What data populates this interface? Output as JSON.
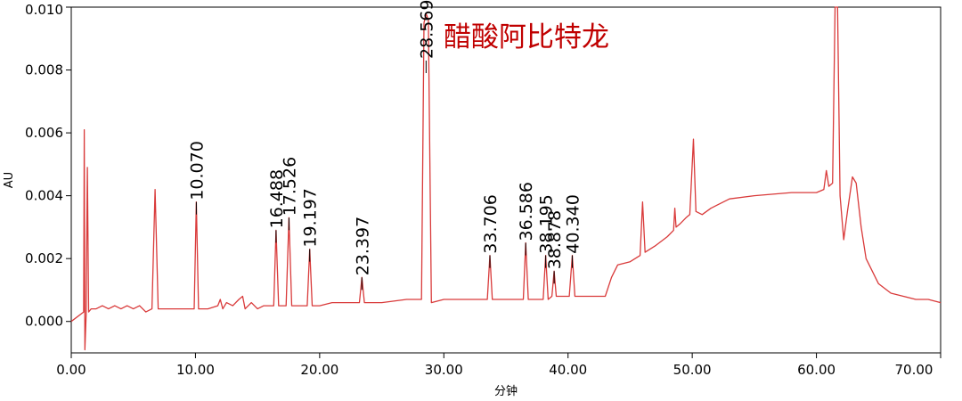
{
  "chart_data": {
    "type": "line",
    "title": "醋酸阿比特龙",
    "xlabel": "分钟",
    "ylabel": "AU",
    "xlim": [
      0,
      70
    ],
    "ylim": [
      -0.001,
      0.01
    ],
    "x_ticks": [
      "0.00",
      "10.00",
      "20.00",
      "30.00",
      "40.00",
      "50.00",
      "60.00",
      "70.00"
    ],
    "y_ticks": [
      "0.000",
      "0.002",
      "0.004",
      "0.006",
      "0.008",
      "0.010"
    ],
    "grid": false,
    "legend": "none",
    "colors": {
      "trace": "#d93a3a",
      "title": "#c00000",
      "axis": "#000000"
    },
    "labeled_peaks": [
      {
        "label": "10.070",
        "x": 10.07,
        "y": 0.0038
      },
      {
        "label": "16.488",
        "x": 16.49,
        "y": 0.0029
      },
      {
        "label": "17.526",
        "x": 17.53,
        "y": 0.0033
      },
      {
        "label": "19.197",
        "x": 19.2,
        "y": 0.0023
      },
      {
        "label": "23.397",
        "x": 23.4,
        "y": 0.0014
      },
      {
        "label": "28.569",
        "x": 28.57,
        "y": 0.0098
      },
      {
        "label": "33.706",
        "x": 33.71,
        "y": 0.0021
      },
      {
        "label": "36.586",
        "x": 36.59,
        "y": 0.0025
      },
      {
        "label": "38.195",
        "x": 38.2,
        "y": 0.0021
      },
      {
        "label": "38.878",
        "x": 38.88,
        "y": 0.0016
      },
      {
        "label": "40.340",
        "x": 40.34,
        "y": 0.0021
      }
    ],
    "trace": [
      [
        0,
        0.0
      ],
      [
        1.0,
        0.0003
      ],
      [
        1.05,
        0.0061
      ],
      [
        1.1,
        -0.0009
      ],
      [
        1.2,
        0.0002
      ],
      [
        1.3,
        0.0049
      ],
      [
        1.4,
        0.0003
      ],
      [
        1.6,
        0.0004
      ],
      [
        2.0,
        0.0004
      ],
      [
        2.5,
        0.0005
      ],
      [
        3.0,
        0.0004
      ],
      [
        3.5,
        0.0005
      ],
      [
        4.0,
        0.0004
      ],
      [
        4.5,
        0.0005
      ],
      [
        5.0,
        0.0004
      ],
      [
        5.5,
        0.0005
      ],
      [
        6.0,
        0.0003
      ],
      [
        6.5,
        0.0004
      ],
      [
        6.75,
        0.0042
      ],
      [
        7.0,
        0.0004
      ],
      [
        8.0,
        0.0004
      ],
      [
        9.0,
        0.0004
      ],
      [
        9.9,
        0.0004
      ],
      [
        10.07,
        0.0038
      ],
      [
        10.25,
        0.0004
      ],
      [
        11.0,
        0.0004
      ],
      [
        11.8,
        0.0005
      ],
      [
        12.0,
        0.0007
      ],
      [
        12.2,
        0.0004
      ],
      [
        12.5,
        0.0006
      ],
      [
        13.0,
        0.0005
      ],
      [
        13.5,
        0.0007
      ],
      [
        13.8,
        0.0008
      ],
      [
        14.0,
        0.0004
      ],
      [
        14.5,
        0.0006
      ],
      [
        15.0,
        0.0004
      ],
      [
        15.5,
        0.0005
      ],
      [
        16.3,
        0.0005
      ],
      [
        16.49,
        0.0029
      ],
      [
        16.7,
        0.0005
      ],
      [
        17.3,
        0.0005
      ],
      [
        17.53,
        0.0033
      ],
      [
        17.75,
        0.0005
      ],
      [
        18.5,
        0.0005
      ],
      [
        19.0,
        0.0005
      ],
      [
        19.2,
        0.0023
      ],
      [
        19.4,
        0.0005
      ],
      [
        20.0,
        0.0005
      ],
      [
        21.0,
        0.0006
      ],
      [
        22.0,
        0.0006
      ],
      [
        23.0,
        0.0006
      ],
      [
        23.2,
        0.0006
      ],
      [
        23.4,
        0.0014
      ],
      [
        23.6,
        0.0006
      ],
      [
        25.0,
        0.0006
      ],
      [
        27.0,
        0.0007
      ],
      [
        28.2,
        0.0007
      ],
      [
        28.4,
        0.0095
      ],
      [
        28.57,
        0.0098
      ],
      [
        28.75,
        0.0096
      ],
      [
        29.0,
        0.0006
      ],
      [
        30.0,
        0.0007
      ],
      [
        32.0,
        0.0007
      ],
      [
        33.5,
        0.0007
      ],
      [
        33.71,
        0.0021
      ],
      [
        33.9,
        0.0007
      ],
      [
        35.0,
        0.0007
      ],
      [
        36.4,
        0.0007
      ],
      [
        36.59,
        0.0025
      ],
      [
        36.8,
        0.0007
      ],
      [
        38.0,
        0.0007
      ],
      [
        38.2,
        0.0021
      ],
      [
        38.4,
        0.0007
      ],
      [
        38.7,
        0.0008
      ],
      [
        38.88,
        0.0016
      ],
      [
        39.05,
        0.0008
      ],
      [
        40.1,
        0.0008
      ],
      [
        40.34,
        0.0021
      ],
      [
        40.55,
        0.0008
      ],
      [
        42.0,
        0.0008
      ],
      [
        43.0,
        0.0008
      ],
      [
        43.5,
        0.0014
      ],
      [
        44.0,
        0.0018
      ],
      [
        45.0,
        0.0019
      ],
      [
        45.8,
        0.0021
      ],
      [
        46.0,
        0.0038
      ],
      [
        46.2,
        0.0022
      ],
      [
        47.0,
        0.0024
      ],
      [
        48.0,
        0.0027
      ],
      [
        48.5,
        0.0029
      ],
      [
        48.6,
        0.0036
      ],
      [
        48.7,
        0.003
      ],
      [
        49.0,
        0.0031
      ],
      [
        49.5,
        0.0033
      ],
      [
        49.8,
        0.0034
      ],
      [
        50.1,
        0.0058
      ],
      [
        50.3,
        0.0035
      ],
      [
        50.8,
        0.0034
      ],
      [
        51.5,
        0.0036
      ],
      [
        52.0,
        0.0037
      ],
      [
        53.0,
        0.0039
      ],
      [
        55.0,
        0.004
      ],
      [
        58.0,
        0.0041
      ],
      [
        60.0,
        0.0041
      ],
      [
        60.6,
        0.0042
      ],
      [
        60.8,
        0.0048
      ],
      [
        61.0,
        0.0043
      ],
      [
        61.3,
        0.0044
      ],
      [
        61.5,
        0.01
      ],
      [
        61.7,
        0.01
      ],
      [
        61.9,
        0.004
      ],
      [
        62.2,
        0.0026
      ],
      [
        62.5,
        0.0035
      ],
      [
        62.9,
        0.0046
      ],
      [
        63.2,
        0.0044
      ],
      [
        63.6,
        0.003
      ],
      [
        64.0,
        0.002
      ],
      [
        65.0,
        0.0012
      ],
      [
        66.0,
        0.0009
      ],
      [
        67.0,
        0.0008
      ],
      [
        68.0,
        0.0007
      ],
      [
        69.0,
        0.0007
      ],
      [
        70.0,
        0.0006
      ]
    ]
  }
}
